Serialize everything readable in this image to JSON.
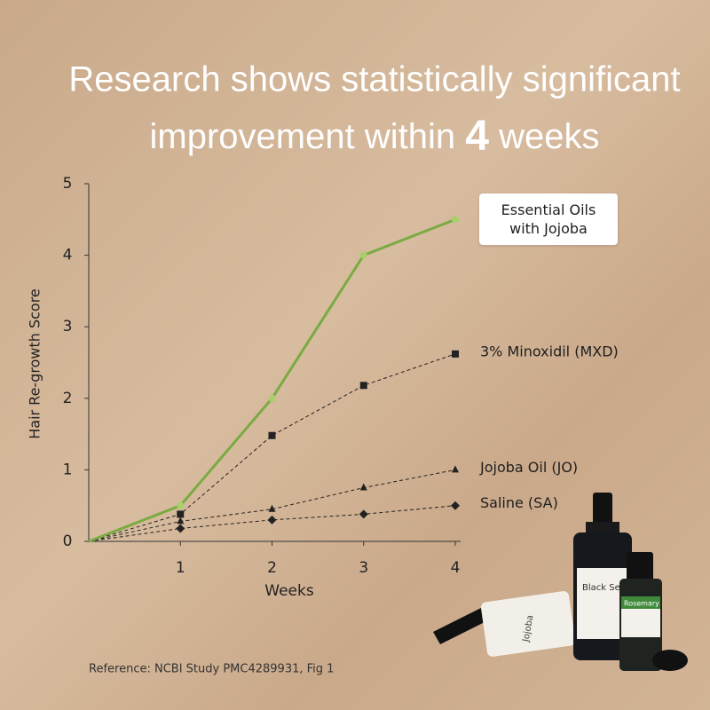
{
  "chart_data": {
    "type": "line",
    "title_parts": [
      "Research shows statistically significant",
      "improvement within",
      "4",
      "weeks"
    ],
    "x": [
      0,
      1,
      2,
      3,
      4
    ],
    "xlim": [
      0,
      4
    ],
    "xticks": [
      1,
      2,
      3,
      4
    ],
    "ylim": [
      0,
      5
    ],
    "yticks": [
      0,
      1,
      2,
      3,
      4,
      5
    ],
    "x_label": "Weeks",
    "y_label": "Hair Re-growth Score",
    "series": [
      {
        "name": "Essential Oils with Jojoba",
        "color": "#7aab43",
        "marker": "circle",
        "dashed": false,
        "values": [
          0,
          0.5,
          2.0,
          4.0,
          4.5
        ]
      },
      {
        "name": "3% Minoxidil (MXD)",
        "color": "#222222",
        "marker": "square",
        "dashed": true,
        "values": [
          0,
          0.38,
          1.48,
          2.18,
          2.62
        ]
      },
      {
        "name": "Jojoba Oil (JO)",
        "color": "#222222",
        "marker": "triangle",
        "dashed": true,
        "values": [
          0,
          0.28,
          0.45,
          0.75,
          1.0
        ]
      },
      {
        "name": "Saline (SA)",
        "color": "#222222",
        "marker": "diamond",
        "dashed": true,
        "values": [
          0,
          0.18,
          0.3,
          0.38,
          0.5
        ]
      }
    ],
    "reference": "Reference: NCBI Study PMC4289931, Fig 1",
    "product_labels": [
      "Jojoba",
      "Black Seed",
      "Rosemary"
    ]
  }
}
